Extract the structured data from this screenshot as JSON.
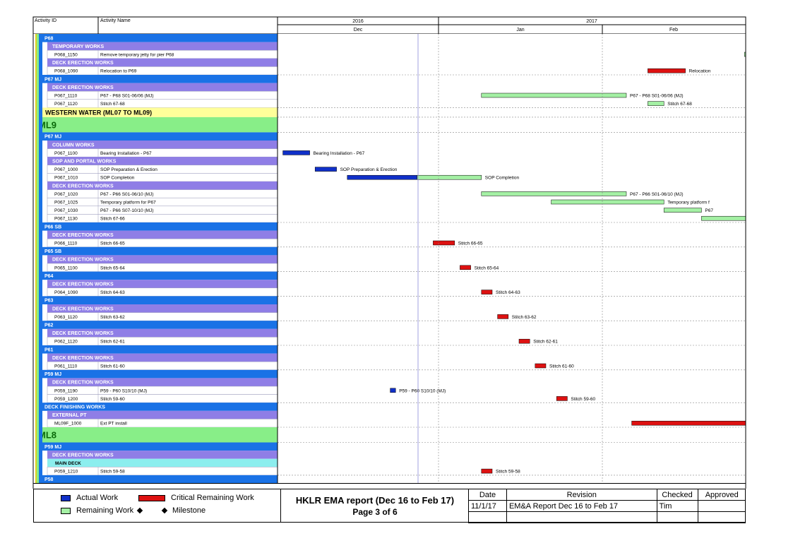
{
  "header": {
    "col_activity_id": "Activity ID",
    "col_activity_name": "Activity Name",
    "year_2016": "2016",
    "year_2017": "2017",
    "month_dec": "Dec",
    "month_jan": "Jan",
    "month_feb": "Feb"
  },
  "colors": {
    "actual": "#1030c8",
    "critical": "#dd1111",
    "remaining": "#a4f0a4",
    "band_blue": "#1a72e6",
    "band_purple": "#8f7ee6",
    "band_green": "#88ee88",
    "band_yellow": "#ffff9a",
    "band_cyan": "#8ceeee"
  },
  "chart_data": {
    "type": "gantt",
    "x_axis": {
      "months": [
        "Dec",
        "Jan",
        "Feb"
      ],
      "years": [
        "2016",
        "2017"
      ],
      "range": [
        "2016-11-27",
        "2017-02-28"
      ]
    },
    "rows": [
      {
        "kind": "wbs",
        "level": "p",
        "label": "P68"
      },
      {
        "kind": "wbs",
        "level": "w",
        "label": "TEMPORARY WORKS"
      },
      {
        "kind": "act",
        "id": "P068_1150",
        "name": "Remove temporary jetty for pier P68",
        "bars": [
          {
            "type": "remaining",
            "start": "2017-02-22",
            "end": "2017-03-06"
          }
        ]
      },
      {
        "kind": "wbs",
        "level": "w",
        "label": "DECK ERECTION WORKS"
      },
      {
        "kind": "act",
        "id": "P068_1090",
        "name": "Relocation to P69",
        "bars": [
          {
            "type": "critical",
            "start": "2017-02-04",
            "end": "2017-02-11"
          }
        ],
        "label": "Relocation"
      },
      {
        "kind": "wbs",
        "level": "p",
        "label": "P67 MJ"
      },
      {
        "kind": "wbs",
        "level": "w",
        "label": "DECK ERECTION WORKS"
      },
      {
        "kind": "act",
        "id": "P067_1110",
        "name": "P67 - P68 S01-06/06 (MJ)",
        "bars": [
          {
            "type": "remaining",
            "start": "2017-01-04",
            "end": "2017-01-31"
          }
        ],
        "label": "P67 - P68 S01-06/06 (MJ)"
      },
      {
        "kind": "act",
        "id": "P067_1120",
        "name": "Stitch 67-68",
        "bars": [
          {
            "type": "remaining",
            "start": "2017-02-04",
            "end": "2017-02-07"
          }
        ],
        "label": "Stitch 67-68"
      },
      {
        "kind": "wbs",
        "level": "y",
        "label": "WESTERN WATER (ML07 TO ML09)"
      },
      {
        "kind": "wbs",
        "level": "g",
        "label": "ML9"
      },
      {
        "kind": "wbs",
        "level": "p",
        "label": "P67 MJ"
      },
      {
        "kind": "wbs",
        "level": "w",
        "label": "COLUMN WORKS"
      },
      {
        "kind": "act",
        "id": "P067_1100",
        "name": "Bearing Installation - P67",
        "bars": [
          {
            "type": "actual",
            "start": "2016-11-28",
            "end": "2016-12-03"
          }
        ],
        "label": "Bearing Installation - P67"
      },
      {
        "kind": "wbs",
        "level": "w",
        "label": "SOP AND PORTAL WORKS"
      },
      {
        "kind": "act",
        "id": "P067_1000",
        "name": "SOP Preparation & Erection",
        "bars": [
          {
            "type": "actual",
            "start": "2016-12-04",
            "end": "2016-12-08"
          }
        ],
        "label": "SOP Preparation & Erection"
      },
      {
        "kind": "act",
        "id": "P067_1010",
        "name": "SOP Completion",
        "bars": [
          {
            "type": "actual",
            "start": "2016-12-10",
            "end": "2016-12-23"
          },
          {
            "type": "remaining",
            "start": "2016-12-23",
            "end": "2017-01-04"
          }
        ],
        "label": "SOP Completion"
      },
      {
        "kind": "wbs",
        "level": "w",
        "label": "DECK ERECTION WORKS"
      },
      {
        "kind": "act",
        "id": "P067_1020",
        "name": "P67 - P66 S01-06/10 (MJ)",
        "bars": [
          {
            "type": "remaining",
            "start": "2017-01-04",
            "end": "2017-01-31"
          }
        ],
        "label": "P67 - P66 S01-06/10 (MJ)"
      },
      {
        "kind": "act",
        "id": "P067_1025",
        "name": "Temporary platform for P67",
        "bars": [
          {
            "type": "remaining",
            "start": "2017-01-17",
            "end": "2017-02-07"
          }
        ],
        "label": "Temporary platform f"
      },
      {
        "kind": "act",
        "id": "P067_1030",
        "name": "P67 - P66 S07-10/10 (MJ)",
        "bars": [
          {
            "type": "remaining",
            "start": "2017-02-07",
            "end": "2017-02-14"
          }
        ],
        "label": "P67"
      },
      {
        "kind": "act",
        "id": "P067_1130",
        "name": "Stitch 67-66",
        "bars": [
          {
            "type": "remaining",
            "start": "2017-02-14",
            "end": "2017-03-06"
          }
        ]
      },
      {
        "kind": "wbs",
        "level": "p",
        "label": "P66 SB"
      },
      {
        "kind": "wbs",
        "level": "w",
        "label": "DECK ERECTION WORKS"
      },
      {
        "kind": "act",
        "id": "P066_1110",
        "name": "Stitch 66-65",
        "bars": [
          {
            "type": "critical",
            "start": "2016-12-26",
            "end": "2016-12-30"
          }
        ],
        "label": "Stitch 66-65"
      },
      {
        "kind": "wbs",
        "level": "p",
        "label": "P65 SB"
      },
      {
        "kind": "wbs",
        "level": "w",
        "label": "DECK ERECTION WORKS"
      },
      {
        "kind": "act",
        "id": "P065_1100",
        "name": "Stitch 65-64",
        "bars": [
          {
            "type": "critical",
            "start": "2016-12-31",
            "end": "2017-01-02"
          }
        ],
        "label": "Stitch 65-64"
      },
      {
        "kind": "wbs",
        "level": "p",
        "label": "P64"
      },
      {
        "kind": "wbs",
        "level": "w",
        "label": "DECK ERECTION WORKS"
      },
      {
        "kind": "act",
        "id": "P064_1090",
        "name": "Stitch 64-63",
        "bars": [
          {
            "type": "critical",
            "start": "2017-01-04",
            "end": "2017-01-06"
          }
        ],
        "label": "Stitch 64-63"
      },
      {
        "kind": "wbs",
        "level": "p",
        "label": "P63"
      },
      {
        "kind": "wbs",
        "level": "w",
        "label": "DECK ERECTION WORKS"
      },
      {
        "kind": "act",
        "id": "P063_1120",
        "name": "Stitch 63-62",
        "bars": [
          {
            "type": "critical",
            "start": "2017-01-07",
            "end": "2017-01-09"
          }
        ],
        "label": "Stitch 63-62"
      },
      {
        "kind": "wbs",
        "level": "p",
        "label": "P62"
      },
      {
        "kind": "wbs",
        "level": "w",
        "label": "DECK ERECTION WORKS"
      },
      {
        "kind": "act",
        "id": "P062_1120",
        "name": "Stitch 62-61",
        "bars": [
          {
            "type": "critical",
            "start": "2017-01-11",
            "end": "2017-01-13"
          }
        ],
        "label": "Stitch 62-61"
      },
      {
        "kind": "wbs",
        "level": "p",
        "label": "P61"
      },
      {
        "kind": "wbs",
        "level": "w",
        "label": "DECK ERECTION WORKS"
      },
      {
        "kind": "act",
        "id": "P061_1110",
        "name": "Stitch 61-60",
        "bars": [
          {
            "type": "critical",
            "start": "2017-01-14",
            "end": "2017-01-16"
          }
        ],
        "label": "Stitch 61-60"
      },
      {
        "kind": "wbs",
        "level": "p",
        "label": "P59 MJ"
      },
      {
        "kind": "wbs",
        "level": "w",
        "label": "DECK ERECTION WORKS"
      },
      {
        "kind": "act",
        "id": "P059_1190",
        "name": "P59 - P60 S10/10 (MJ)",
        "bars": [
          {
            "type": "actual",
            "start": "2016-12-18",
            "end": "2016-12-19"
          }
        ],
        "label": "P59 - P60 S10/10 (MJ)"
      },
      {
        "kind": "act",
        "id": "P059_1200",
        "name": "Stitch 59-60",
        "bars": [
          {
            "type": "critical",
            "start": "2017-01-18",
            "end": "2017-01-20"
          }
        ],
        "label": "Stitch 59-60"
      },
      {
        "kind": "wbs",
        "level": "p",
        "label": "DECK FINISHING WORKS"
      },
      {
        "kind": "wbs",
        "level": "w",
        "label": "EXTERNAL PT"
      },
      {
        "kind": "act",
        "id": "ML09F_1000",
        "name": "Ext PT install",
        "bars": [
          {
            "type": "critical",
            "start": "2017-02-01",
            "end": "2017-03-06"
          }
        ]
      },
      {
        "kind": "wbs",
        "level": "g",
        "label": "ML8"
      },
      {
        "kind": "wbs",
        "level": "p",
        "label": "P59 MJ"
      },
      {
        "kind": "wbs",
        "level": "w",
        "label": "DECK ERECTION WORKS"
      },
      {
        "kind": "wbs",
        "level": "c",
        "label": "MAIN DECK"
      },
      {
        "kind": "act",
        "id": "P059_1210",
        "name": "Stitch 59-58",
        "bars": [
          {
            "type": "critical",
            "start": "2017-01-04",
            "end": "2017-01-06"
          }
        ],
        "label": "Stitch 59-58"
      },
      {
        "kind": "wbs",
        "level": "p",
        "label": "P58"
      }
    ]
  },
  "legend": {
    "actual_work": "Actual Work",
    "critical_remaining": "Critical Remaining Work",
    "remaining_work": "Remaining Work",
    "milestone": "Milestone"
  },
  "title_block": {
    "report_title": "HKLR EMA report (Dec 16 to Feb 17)",
    "page": "Page 3 of 6"
  },
  "revision_table": {
    "headers": [
      "Date",
      "Revision",
      "Checked",
      "Approved"
    ],
    "rows": [
      [
        "11/1/17",
        "EM&A Report Dec 16 to Feb 17",
        "Tim",
        ""
      ],
      [
        "",
        "",
        "",
        ""
      ]
    ]
  }
}
